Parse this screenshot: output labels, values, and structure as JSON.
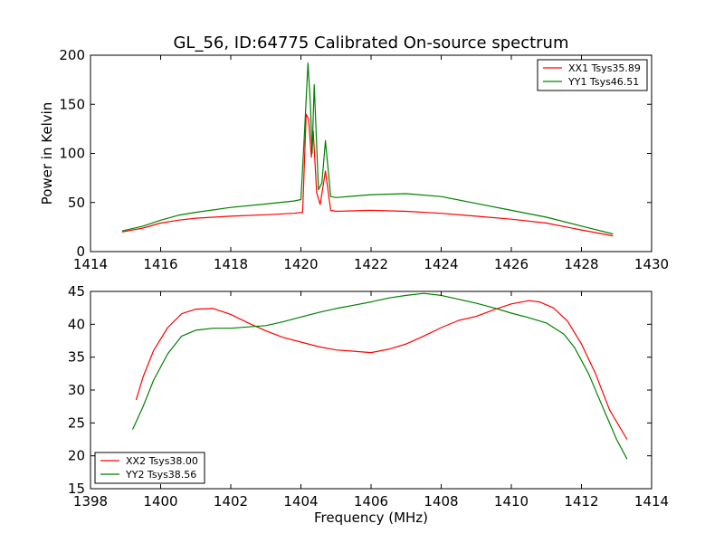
{
  "title": "GL_56, ID:64775 Calibrated On-source spectrum",
  "colors": {
    "xx": "#ff0000",
    "yy": "#008000"
  },
  "chart_data": [
    {
      "type": "line",
      "xlabel": "",
      "ylabel": "Power in Kelvin",
      "xlim": [
        1414,
        1430
      ],
      "ylim": [
        0,
        200
      ],
      "xticks": [
        1414,
        1416,
        1418,
        1420,
        1422,
        1424,
        1426,
        1428,
        1430
      ],
      "yticks": [
        0,
        50,
        100,
        150,
        200
      ],
      "legend_position": "top-right",
      "series": [
        {
          "name": "XX1 Tsys35.89",
          "color": "#ff0000",
          "points": [
            [
              1414.9,
              20
            ],
            [
              1415.5,
              24
            ],
            [
              1416.0,
              29
            ],
            [
              1416.5,
              32
            ],
            [
              1417.0,
              34
            ],
            [
              1418.0,
              36
            ],
            [
              1419.0,
              37.5
            ],
            [
              1419.8,
              39
            ],
            [
              1420.05,
              40
            ],
            [
              1420.15,
              140
            ],
            [
              1420.22,
              135
            ],
            [
              1420.3,
              96
            ],
            [
              1420.35,
              123
            ],
            [
              1420.45,
              60
            ],
            [
              1420.55,
              48
            ],
            [
              1420.7,
              82
            ],
            [
              1420.85,
              42
            ],
            [
              1421.0,
              41
            ],
            [
              1422.0,
              42
            ],
            [
              1423.0,
              41
            ],
            [
              1424.0,
              39
            ],
            [
              1425.0,
              36
            ],
            [
              1426.0,
              33
            ],
            [
              1427.0,
              29
            ],
            [
              1428.0,
              22
            ],
            [
              1428.9,
              16
            ]
          ]
        },
        {
          "name": "YY1 Tsys46.51",
          "color": "#008000",
          "points": [
            [
              1414.9,
              21
            ],
            [
              1415.5,
              26
            ],
            [
              1416.0,
              32
            ],
            [
              1416.5,
              37
            ],
            [
              1417.0,
              40
            ],
            [
              1418.0,
              45
            ],
            [
              1419.0,
              48.5
            ],
            [
              1419.8,
              51.5
            ],
            [
              1420.0,
              53
            ],
            [
              1420.1,
              120
            ],
            [
              1420.2,
              192
            ],
            [
              1420.27,
              150
            ],
            [
              1420.32,
              100
            ],
            [
              1420.38,
              170
            ],
            [
              1420.5,
              63
            ],
            [
              1420.6,
              70
            ],
            [
              1420.7,
              113
            ],
            [
              1420.85,
              56
            ],
            [
              1421.0,
              55
            ],
            [
              1422.0,
              58
            ],
            [
              1423.0,
              59
            ],
            [
              1424.0,
              56
            ],
            [
              1425.0,
              49
            ],
            [
              1426.0,
              42
            ],
            [
              1427.0,
              35
            ],
            [
              1428.0,
              26
            ],
            [
              1428.9,
              18
            ]
          ]
        }
      ]
    },
    {
      "type": "line",
      "xlabel": "Frequency (MHz)",
      "ylabel": "",
      "xlim": [
        1398,
        1414
      ],
      "ylim": [
        15,
        45
      ],
      "xticks": [
        1398,
        1400,
        1402,
        1404,
        1406,
        1408,
        1410,
        1412,
        1414
      ],
      "yticks": [
        15,
        20,
        25,
        30,
        35,
        40,
        45
      ],
      "legend_position": "bottom-left",
      "series": [
        {
          "name": "XX2 Tsys38.00",
          "color": "#ff0000",
          "points": [
            [
              1399.3,
              28.5
            ],
            [
              1399.5,
              32
            ],
            [
              1399.8,
              36
            ],
            [
              1400.2,
              39.5
            ],
            [
              1400.6,
              41.6
            ],
            [
              1401.0,
              42.3
            ],
            [
              1401.5,
              42.4
            ],
            [
              1402.0,
              41.5
            ],
            [
              1402.5,
              40.2
            ],
            [
              1403.0,
              39.0
            ],
            [
              1403.5,
              38.0
            ],
            [
              1404.0,
              37.3
            ],
            [
              1404.5,
              36.6
            ],
            [
              1405.0,
              36.1
            ],
            [
              1405.5,
              35.9
            ],
            [
              1406.0,
              35.7
            ],
            [
              1406.5,
              36.2
            ],
            [
              1407.0,
              37.0
            ],
            [
              1407.5,
              38.2
            ],
            [
              1408.0,
              39.5
            ],
            [
              1408.5,
              40.6
            ],
            [
              1409.0,
              41.2
            ],
            [
              1409.5,
              42.2
            ],
            [
              1410.0,
              43.1
            ],
            [
              1410.5,
              43.6
            ],
            [
              1410.8,
              43.4
            ],
            [
              1411.2,
              42.5
            ],
            [
              1411.6,
              40.5
            ],
            [
              1412.0,
              37.0
            ],
            [
              1412.4,
              32.5
            ],
            [
              1412.8,
              27.0
            ],
            [
              1413.3,
              22.5
            ]
          ]
        },
        {
          "name": "YY2 Tsys38.56",
          "color": "#008000",
          "points": [
            [
              1399.2,
              24
            ],
            [
              1399.5,
              27.5
            ],
            [
              1399.8,
              31.5
            ],
            [
              1400.2,
              35.5
            ],
            [
              1400.6,
              38.2
            ],
            [
              1401.0,
              39.1
            ],
            [
              1401.5,
              39.4
            ],
            [
              1402.0,
              39.4
            ],
            [
              1402.5,
              39.6
            ],
            [
              1403.0,
              39.8
            ],
            [
              1403.5,
              40.4
            ],
            [
              1404.0,
              41.1
            ],
            [
              1404.5,
              41.8
            ],
            [
              1405.0,
              42.4
            ],
            [
              1405.5,
              42.9
            ],
            [
              1406.0,
              43.4
            ],
            [
              1406.5,
              44.0
            ],
            [
              1407.0,
              44.4
            ],
            [
              1407.5,
              44.7
            ],
            [
              1408.0,
              44.4
            ],
            [
              1408.5,
              43.8
            ],
            [
              1409.0,
              43.2
            ],
            [
              1409.5,
              42.5
            ],
            [
              1410.0,
              41.7
            ],
            [
              1410.5,
              41.0
            ],
            [
              1411.0,
              40.2
            ],
            [
              1411.5,
              38.5
            ],
            [
              1411.8,
              36.5
            ],
            [
              1412.2,
              32.5
            ],
            [
              1412.6,
              27.5
            ],
            [
              1413.0,
              22.5
            ],
            [
              1413.3,
              19.5
            ]
          ]
        }
      ]
    }
  ]
}
